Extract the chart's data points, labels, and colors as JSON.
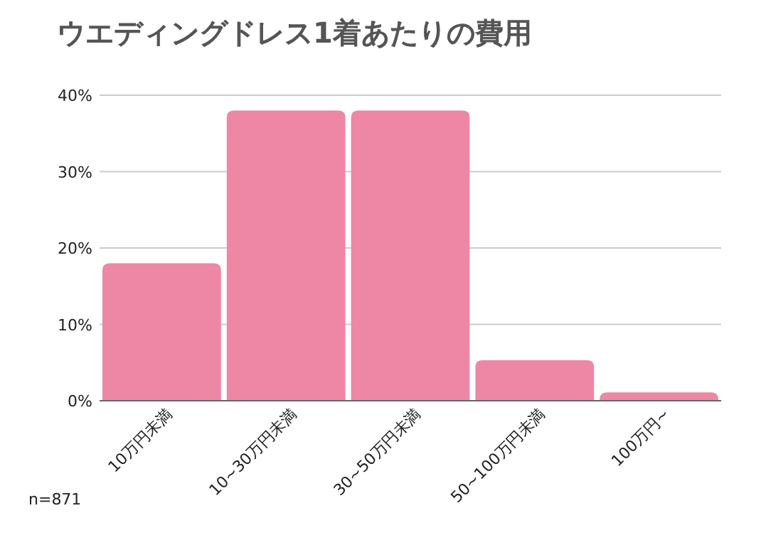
{
  "chart_data": {
    "type": "bar",
    "title": "ウエディングドレス1着あたりの費用",
    "categories": [
      "10万円未満",
      "10~30万円未満",
      "30~50万円未満",
      "50~100万円未満",
      "100万円~"
    ],
    "values": [
      18,
      38,
      38,
      5.3,
      1.1
    ],
    "color": "#ee87a6",
    "ylim": [
      0,
      40
    ],
    "yticks": [
      {
        "value": 0,
        "label": "0%"
      },
      {
        "value": 10,
        "label": "10%"
      },
      {
        "value": 20,
        "label": "20%"
      },
      {
        "value": 30,
        "label": "30%"
      },
      {
        "value": 40,
        "label": "40%"
      }
    ],
    "grid": "y",
    "annotations": [
      "n=871"
    ]
  }
}
